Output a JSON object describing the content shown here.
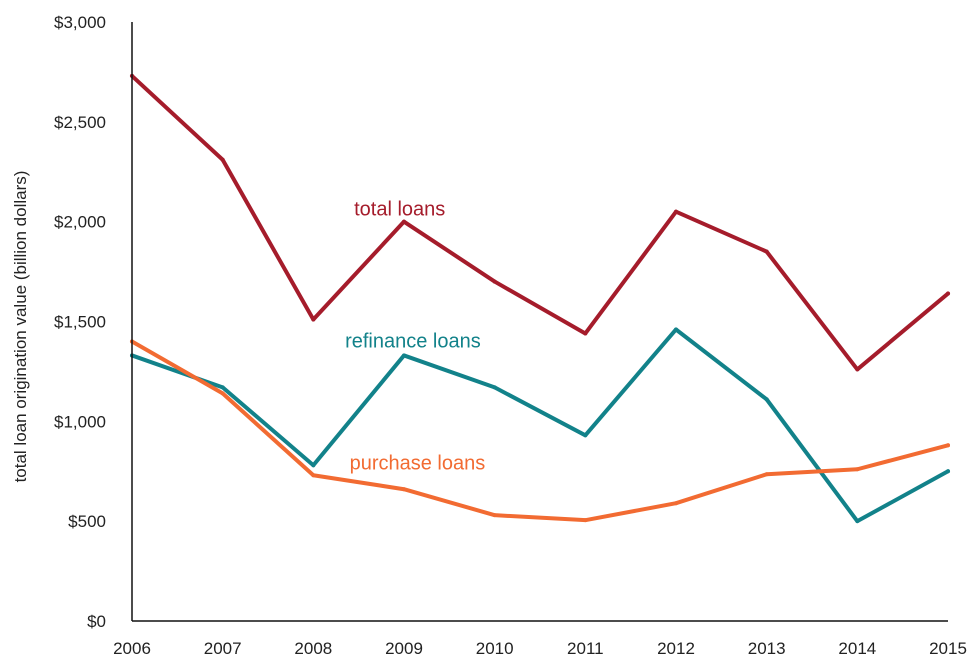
{
  "chart_data": {
    "type": "line",
    "title": "",
    "xlabel": "",
    "ylabel": "total loan origination value (billion dollars)",
    "x": [
      2006,
      2007,
      2008,
      2009,
      2010,
      2011,
      2012,
      2013,
      2014,
      2015
    ],
    "x_tick_labels": [
      "2006",
      "2007",
      "2008",
      "2009",
      "2010",
      "2011",
      "2012",
      "2013",
      "2014",
      "2015"
    ],
    "ylim": [
      0,
      3000
    ],
    "y_ticks": [
      0,
      500,
      1000,
      1500,
      2000,
      2500,
      3000
    ],
    "y_tick_labels": [
      "$0",
      "$500",
      "$1,000",
      "$1,500",
      "$2,000",
      "$2,500",
      "$3,000"
    ],
    "grid": false,
    "legend": "none",
    "series": [
      {
        "name": "total loans",
        "color": "#a51c2b",
        "values": [
          2730,
          2310,
          1510,
          2000,
          1700,
          1440,
          2050,
          1850,
          1260,
          1640
        ]
      },
      {
        "name": "refinance loans",
        "color": "#12828a",
        "values": [
          1330,
          1170,
          780,
          1330,
          1170,
          930,
          1460,
          1110,
          500,
          750
        ]
      },
      {
        "name": "purchase loans",
        "color": "#f26b32",
        "values": [
          1400,
          1140,
          730,
          660,
          530,
          505,
          590,
          735,
          760,
          880
        ]
      }
    ]
  }
}
